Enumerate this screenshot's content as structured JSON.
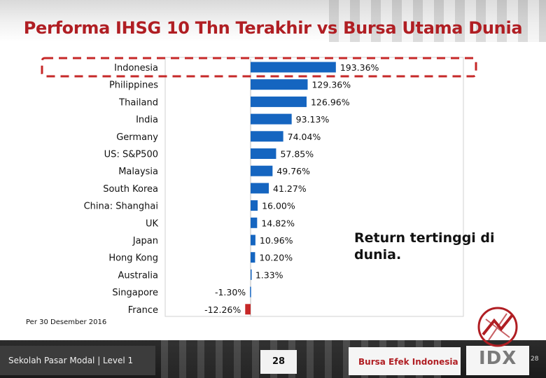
{
  "title": "Performa IHSG 10 Thn Terakhir vs Bursa Utama Dunia",
  "callout": "Return tertinggi di dunia.",
  "note": "Per 30 Desember 2016",
  "footer": {
    "left": "Sekolah Pasar Modal | Level 1",
    "page_center": "28",
    "brand": "Bursa Efek Indonesia",
    "logo_text": "IDX",
    "page_right": "28"
  },
  "colors": {
    "title": "#b01e23",
    "bar": "#1565c0",
    "highlight_dash": "#c62828",
    "negative_bar": "#c62828"
  },
  "chart_data": {
    "type": "bar",
    "orientation": "horizontal",
    "title": "Performa IHSG 10 Thn Terakhir vs Bursa Utama Dunia",
    "categories": [
      "Indonesia",
      "Philippines",
      "Thailand",
      "India",
      "Germany",
      "US: S&P500",
      "Malaysia",
      "South Korea",
      "China: Shanghai",
      "UK",
      "Japan",
      "Hong Kong",
      "Australia",
      "Singapore",
      "France"
    ],
    "values": [
      193.36,
      129.36,
      126.96,
      93.13,
      74.04,
      57.85,
      49.76,
      41.27,
      16.0,
      14.82,
      10.96,
      10.2,
      1.33,
      -1.3,
      -12.26
    ],
    "labels": [
      "193.36%",
      "129.36%",
      "126.96%",
      "93.13%",
      "74.04%",
      "57.85%",
      "49.76%",
      "41.27%",
      "16.00%",
      "14.82%",
      "10.96%",
      "10.20%",
      "1.33%",
      "-1.30%",
      "-12.26%"
    ],
    "unit": "%",
    "highlight": "Indonesia",
    "grid": false,
    "legend": "none"
  }
}
